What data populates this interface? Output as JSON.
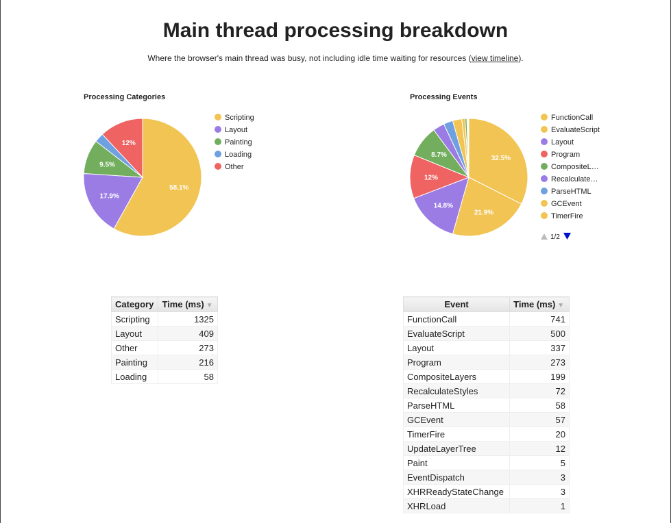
{
  "page": {
    "title": "Main thread processing breakdown",
    "subtitle_before": "Where the browser's main thread was busy, not including idle time waiting for resources (",
    "subtitle_link": "view timeline",
    "subtitle_after": ")."
  },
  "colors": {
    "yellow": "#f1c453",
    "purple": "#9a7ce4",
    "green": "#72ae5d",
    "blue": "#6fa0e0",
    "red": "#ef6363"
  },
  "chart_data": [
    {
      "type": "pie",
      "title": "Processing Categories",
      "slices": [
        {
          "label": "Scripting",
          "value": 1325,
          "pct_label": "58.1%",
          "color": "#f1c453"
        },
        {
          "label": "Layout",
          "value": 409,
          "pct_label": "17.9%",
          "color": "#9a7ce4"
        },
        {
          "label": "Painting",
          "value": 216,
          "pct_label": "9.5%",
          "color": "#72ae5d"
        },
        {
          "label": "Loading",
          "value": 58,
          "pct_label": "",
          "color": "#6fa0e0"
        },
        {
          "label": "Other",
          "value": 273,
          "pct_label": "12%",
          "color": "#ef6363"
        }
      ],
      "legend": [
        "Scripting",
        "Layout",
        "Painting",
        "Loading",
        "Other"
      ],
      "legend_position": "right"
    },
    {
      "type": "pie",
      "title": "Processing Events",
      "slices": [
        {
          "label": "FunctionCall",
          "value": 741,
          "pct_label": "32.5%",
          "color": "#f1c453"
        },
        {
          "label": "EvaluateScript",
          "value": 500,
          "pct_label": "21.9%",
          "color": "#f1c453"
        },
        {
          "label": "Layout",
          "value": 337,
          "pct_label": "14.8%",
          "color": "#9a7ce4"
        },
        {
          "label": "Program",
          "value": 273,
          "pct_label": "12%",
          "color": "#ef6363"
        },
        {
          "label": "CompositeLayers",
          "value": 199,
          "pct_label": "8.7%",
          "color": "#72ae5d"
        },
        {
          "label": "RecalculateStyles",
          "value": 72,
          "pct_label": "",
          "color": "#9a7ce4"
        },
        {
          "label": "ParseHTML",
          "value": 58,
          "pct_label": "",
          "color": "#6fa0e0"
        },
        {
          "label": "GCEvent",
          "value": 57,
          "pct_label": "",
          "color": "#f1c453"
        },
        {
          "label": "TimerFire",
          "value": 20,
          "pct_label": "",
          "color": "#f1c453"
        },
        {
          "label": "UpdateLayerTree",
          "value": 12,
          "pct_label": "",
          "color": "#72ae5d"
        },
        {
          "label": "Paint",
          "value": 5,
          "pct_label": "",
          "color": "#72ae5d"
        },
        {
          "label": "EventDispatch",
          "value": 3,
          "pct_label": "",
          "color": "#f1c453"
        },
        {
          "label": "XHRReadyStateChange",
          "value": 3,
          "pct_label": "",
          "color": "#f1c453"
        },
        {
          "label": "XHRLoad",
          "value": 1,
          "pct_label": "",
          "color": "#f1c453"
        }
      ],
      "legend": [
        {
          "label": "FunctionCall",
          "color": "#f1c453"
        },
        {
          "label": "EvaluateScript",
          "color": "#f1c453"
        },
        {
          "label": "Layout",
          "color": "#9a7ce4"
        },
        {
          "label": "Program",
          "color": "#ef6363"
        },
        {
          "label": "CompositeL…",
          "color": "#72ae5d"
        },
        {
          "label": "Recalculate…",
          "color": "#9a7ce4"
        },
        {
          "label": "ParseHTML",
          "color": "#6fa0e0"
        },
        {
          "label": "GCEvent",
          "color": "#f1c453"
        },
        {
          "label": "TimerFire",
          "color": "#f1c453"
        }
      ],
      "legend_page": "1/2",
      "legend_position": "right"
    }
  ],
  "tables": {
    "categories": {
      "headers": [
        "Category",
        "Time (ms)"
      ],
      "sort_indicator": "▼",
      "rows": [
        [
          "Scripting",
          "1325"
        ],
        [
          "Layout",
          "409"
        ],
        [
          "Other",
          "273"
        ],
        [
          "Painting",
          "216"
        ],
        [
          "Loading",
          "58"
        ]
      ]
    },
    "events": {
      "headers": [
        "Event",
        "Time (ms)"
      ],
      "sort_indicator": "▼",
      "rows": [
        [
          "FunctionCall",
          "741"
        ],
        [
          "EvaluateScript",
          "500"
        ],
        [
          "Layout",
          "337"
        ],
        [
          "Program",
          "273"
        ],
        [
          "CompositeLayers",
          "199"
        ],
        [
          "RecalculateStyles",
          "72"
        ],
        [
          "ParseHTML",
          "58"
        ],
        [
          "GCEvent",
          "57"
        ],
        [
          "TimerFire",
          "20"
        ],
        [
          "UpdateLayerTree",
          "12"
        ],
        [
          "Paint",
          "5"
        ],
        [
          "EventDispatch",
          "3"
        ],
        [
          "XHRReadyStateChange",
          "3"
        ],
        [
          "XHRLoad",
          "1"
        ]
      ]
    }
  }
}
